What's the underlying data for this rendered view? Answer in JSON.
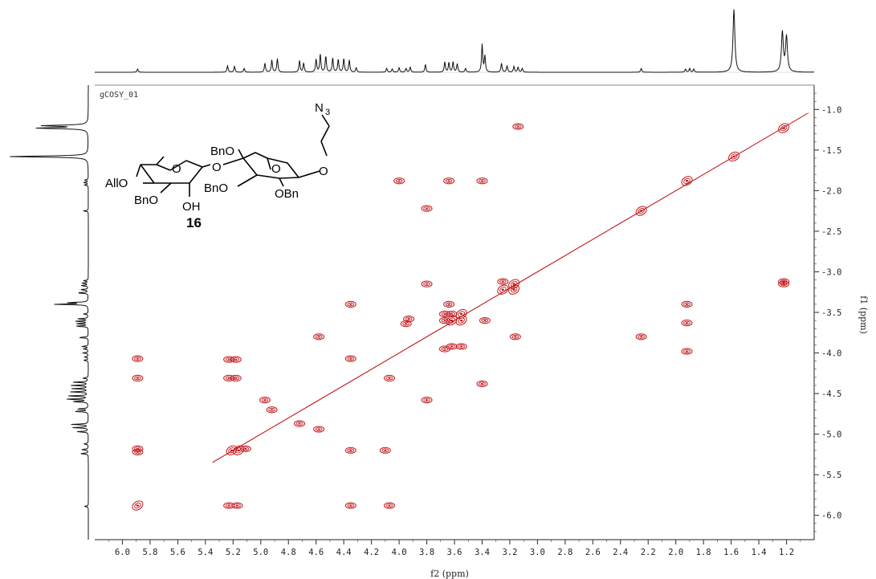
{
  "chart_data": {
    "type": "scatter",
    "experiment_name": "gCOSY_01",
    "xlabel": "f2 (ppm)",
    "ylabel": "f1 (ppm)",
    "xlim": [
      6.2,
      1.0
    ],
    "ylim": [
      0.7,
      6.3
    ],
    "x_ticks": [
      "6.0",
      "5.8",
      "5.6",
      "5.4",
      "5.2",
      "5.0",
      "4.8",
      "4.6",
      "4.4",
      "4.2",
      "4.0",
      "3.8",
      "3.6",
      "3.4",
      "3.2",
      "3.0",
      "2.8",
      "2.6",
      "2.4",
      "2.2",
      "2.0",
      "1.8",
      "1.6",
      "1.4",
      "1.2"
    ],
    "y_ticks": [
      "1.0",
      "1.5",
      "2.0",
      "2.5",
      "3.0",
      "3.5",
      "4.0",
      "4.5",
      "5.0",
      "5.5",
      "6.0"
    ],
    "contour_color": "#c0181c",
    "series": [
      {
        "points": [
          [
            5.89,
            4.07
          ],
          [
            5.89,
            4.31
          ],
          [
            5.89,
            5.18
          ],
          [
            5.89,
            5.22
          ],
          [
            5.89,
            5.88
          ],
          [
            5.23,
            4.08
          ],
          [
            5.18,
            4.08
          ],
          [
            5.23,
            4.31
          ],
          [
            5.18,
            4.31
          ],
          [
            5.23,
            5.88
          ],
          [
            5.17,
            5.88
          ],
          [
            5.21,
            5.2
          ],
          [
            5.16,
            5.2
          ],
          [
            5.11,
            5.18
          ],
          [
            4.97,
            4.58
          ],
          [
            4.92,
            4.7
          ],
          [
            4.72,
            4.87
          ],
          [
            4.58,
            4.94
          ],
          [
            4.58,
            3.8
          ],
          [
            4.35,
            3.4
          ],
          [
            4.35,
            4.07
          ],
          [
            4.35,
            5.88
          ],
          [
            4.35,
            5.2
          ],
          [
            4.1,
            5.2
          ],
          [
            4.07,
            5.88
          ],
          [
            4.07,
            4.31
          ],
          [
            4.0,
            1.88
          ],
          [
            3.64,
            1.88
          ],
          [
            3.4,
            1.88
          ],
          [
            3.8,
            2.22
          ],
          [
            3.8,
            3.15
          ],
          [
            3.8,
            4.58
          ],
          [
            3.14,
            1.21
          ],
          [
            3.4,
            4.38
          ],
          [
            3.16,
            3.8
          ],
          [
            3.38,
            3.6
          ],
          [
            3.67,
            3.52
          ],
          [
            3.62,
            3.52
          ],
          [
            3.55,
            3.52
          ],
          [
            3.67,
            3.6
          ],
          [
            3.62,
            3.6
          ],
          [
            3.55,
            3.6
          ],
          [
            3.67,
            3.95
          ],
          [
            3.62,
            3.92
          ],
          [
            3.55,
            3.92
          ],
          [
            3.64,
            3.4
          ],
          [
            3.93,
            3.58
          ],
          [
            3.95,
            3.64
          ],
          [
            3.25,
            3.12
          ],
          [
            3.17,
            3.15
          ],
          [
            3.25,
            3.22
          ],
          [
            3.17,
            3.22
          ],
          [
            2.25,
            3.8
          ],
          [
            1.92,
            3.4
          ],
          [
            1.92,
            3.63
          ],
          [
            1.92,
            3.98
          ],
          [
            1.22,
            3.12
          ],
          [
            1.22,
            3.15
          ],
          [
            1.58,
            1.58
          ],
          [
            1.92,
            1.88
          ],
          [
            1.22,
            1.23
          ],
          [
            2.25,
            2.25
          ]
        ]
      }
    ],
    "diagonal_range": [
      5.35,
      1.05
    ],
    "top_projection_peaks": [
      {
        "ppm": 5.89,
        "h": 0.05
      },
      {
        "ppm": 5.24,
        "h": 0.1
      },
      {
        "ppm": 5.19,
        "h": 0.09
      },
      {
        "ppm": 5.12,
        "h": 0.06
      },
      {
        "ppm": 4.97,
        "h": 0.14
      },
      {
        "ppm": 4.92,
        "h": 0.19
      },
      {
        "ppm": 4.88,
        "h": 0.21
      },
      {
        "ppm": 4.72,
        "h": 0.18
      },
      {
        "ppm": 4.69,
        "h": 0.14
      },
      {
        "ppm": 4.6,
        "h": 0.2
      },
      {
        "ppm": 4.57,
        "h": 0.28
      },
      {
        "ppm": 4.53,
        "h": 0.25
      },
      {
        "ppm": 4.48,
        "h": 0.22
      },
      {
        "ppm": 4.44,
        "h": 0.2
      },
      {
        "ppm": 4.4,
        "h": 0.21
      },
      {
        "ppm": 4.36,
        "h": 0.19
      },
      {
        "ppm": 4.31,
        "h": 0.07
      },
      {
        "ppm": 4.09,
        "h": 0.06
      },
      {
        "ppm": 4.05,
        "h": 0.05
      },
      {
        "ppm": 4.0,
        "h": 0.07
      },
      {
        "ppm": 3.95,
        "h": 0.06
      },
      {
        "ppm": 3.92,
        "h": 0.08
      },
      {
        "ppm": 3.81,
        "h": 0.12
      },
      {
        "ppm": 3.67,
        "h": 0.16
      },
      {
        "ppm": 3.64,
        "h": 0.15
      },
      {
        "ppm": 3.61,
        "h": 0.16
      },
      {
        "ppm": 3.58,
        "h": 0.13
      },
      {
        "ppm": 3.52,
        "h": 0.06
      },
      {
        "ppm": 3.4,
        "h": 0.43
      },
      {
        "ppm": 3.38,
        "h": 0.25
      },
      {
        "ppm": 3.26,
        "h": 0.14
      },
      {
        "ppm": 3.22,
        "h": 0.1
      },
      {
        "ppm": 3.17,
        "h": 0.09
      },
      {
        "ppm": 3.14,
        "h": 0.08
      },
      {
        "ppm": 3.11,
        "h": 0.06
      },
      {
        "ppm": 2.25,
        "h": 0.06
      },
      {
        "ppm": 1.93,
        "h": 0.05
      },
      {
        "ppm": 1.9,
        "h": 0.06
      },
      {
        "ppm": 1.87,
        "h": 0.05
      },
      {
        "ppm": 1.58,
        "h": 0.98
      },
      {
        "ppm": 1.23,
        "h": 0.62
      },
      {
        "ppm": 1.2,
        "h": 0.55
      }
    ]
  },
  "molecule": {
    "labels": {
      "azide": "N",
      "azide_sub": "3",
      "bno_top": "BnO",
      "allo": "AllO",
      "bno_left": "BnO",
      "oh": "OH",
      "bno_mid": "BnO",
      "obn": "OBn",
      "ring_o1": "O",
      "ring_o2": "O",
      "link_o": "O",
      "ring_o3": "O",
      "tail_o": "O",
      "compound": "16"
    }
  }
}
